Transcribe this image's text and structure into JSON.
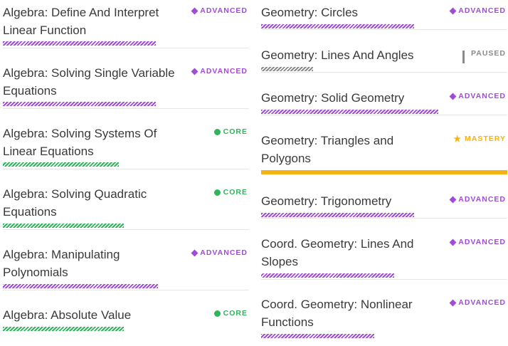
{
  "colors": {
    "advanced": "#a24bd8",
    "core": "#2fb45a",
    "paused": "#8a8a8a",
    "mastery": "#f5b215"
  },
  "skills": {
    "left": [
      {
        "title": "Algebra: Define And Interpret Linear Function",
        "status": "ADVANCED",
        "progress": 0.62
      },
      {
        "title": "Algebra: Solving Single Variable Equations",
        "status": "ADVANCED",
        "progress": 0.62
      },
      {
        "title": "Algebra: Solving Systems Of Linear Equations",
        "status": "CORE",
        "progress": 0.47
      },
      {
        "title": "Algebra: Solving Quadratic Equations",
        "status": "CORE",
        "progress": 0.49
      },
      {
        "title": "Algebra: Manipulating Polynomials",
        "status": "ADVANCED",
        "progress": 0.63
      },
      {
        "title": "Algebra: Absolute Value",
        "status": "CORE",
        "progress": 0.49
      }
    ],
    "right": [
      {
        "title": "Geometry: Circles",
        "status": "ADVANCED",
        "progress": 0.62
      },
      {
        "title": "Geometry: Lines And Angles",
        "status": "PAUSED",
        "progress": 0.21
      },
      {
        "title": "Geometry: Solid Geometry",
        "status": "ADVANCED",
        "progress": 0.72
      },
      {
        "title": "Geometry: Triangles and Polygons",
        "status": "MASTERY",
        "progress": 1.0
      },
      {
        "title": "Geometry: Trigonometry",
        "status": "ADVANCED",
        "progress": 0.62
      },
      {
        "title": "Coord. Geometry: Lines And Slopes",
        "status": "ADVANCED",
        "progress": 0.54
      },
      {
        "title": "Coord. Geometry: Nonlinear Functions",
        "status": "ADVANCED",
        "progress": 0.46
      }
    ]
  },
  "icons": {
    "ADVANCED": "diamond-icon",
    "CORE": "dot-icon",
    "PAUSED": "pause-icon",
    "MASTERY": "star-icon"
  }
}
